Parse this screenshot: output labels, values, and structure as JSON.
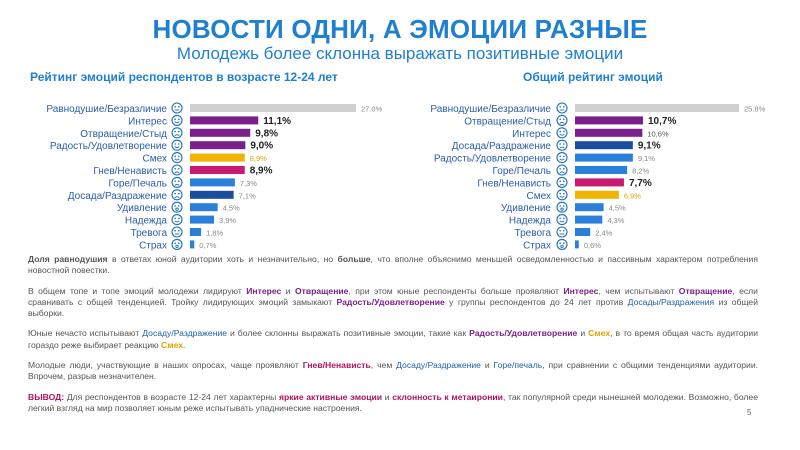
{
  "header": {
    "title": "НОВОСТИ ОДНИ, А ЭМОЦИИ РАЗНЫЕ",
    "subtitle": "Молодежь более склонна выражать позитивные эмоции"
  },
  "colors": {
    "accent": "#1f7fd0",
    "gray": "#d0d0d0",
    "purple": "#7a1f8c",
    "yellow": "#f0b400",
    "pink": "#c81a6e",
    "blue": "#2a7fd8",
    "icon": "#1f6fb8"
  },
  "chart_data": [
    {
      "type": "bar",
      "orientation": "horizontal",
      "title": "Рейтинг эмоций респондентов в возрасте 12-24 лет",
      "categories": [
        "Равнодушие/Безразличие",
        "Интерес",
        "Отвращение/Стыд",
        "Радость/Удовлетворение",
        "Смех",
        "Гнев/Ненависть",
        "Горе/Печаль",
        "Досада/Раздражение",
        "Удивление",
        "Надежда",
        "Тревога",
        "Страх"
      ],
      "values": [
        27.0,
        11.1,
        9.8,
        9.0,
        8.9,
        8.9,
        7.3,
        7.1,
        4.5,
        3.9,
        1.8,
        0.7
      ],
      "labels": [
        "27.0%",
        "11,1%",
        "9,8%",
        "9,0%",
        "8,9%",
        "8,9%",
        "7,3%",
        "7,1%",
        "4,5%",
        "3,9%",
        "1,8%",
        "0,7%"
      ],
      "bold": [
        false,
        true,
        true,
        true,
        false,
        true,
        false,
        false,
        false,
        false,
        false,
        false
      ],
      "colors": [
        "#d0d0d0",
        "#7a1f8c",
        "#7a1f8c",
        "#7a1f8c",
        "#f0b400",
        "#c81a6e",
        "#2a7fd8",
        "#1a4fa0",
        "#2a7fd8",
        "#2a7fd8",
        "#2a7fd8",
        "#2a7fd8"
      ],
      "label_colors": [
        "#888888",
        "#222222",
        "#222222",
        "#222222",
        "#e0a400",
        "#222222",
        "#888888",
        "#888888",
        "#888888",
        "#888888",
        "#888888",
        "#888888"
      ],
      "icons": [
        "neutral-face-icon",
        "interest-face-icon",
        "disgust-face-icon",
        "joy-face-icon",
        "laugh-face-icon",
        "anger-face-icon",
        "sad-face-icon",
        "annoyed-face-icon",
        "surprise-face-icon",
        "hope-face-icon",
        "anxiety-face-icon",
        "fear-face-icon"
      ],
      "xlim": [
        0,
        27
      ],
      "grid": false,
      "legend": "none"
    },
    {
      "type": "bar",
      "orientation": "horizontal",
      "title": "Общий рейтинг эмоций",
      "categories": [
        "Равнодушие/Безразличие",
        "Отвращение/Стыд",
        "Интерес",
        "Досада/Раздражение",
        "Радость/Удовлетворение",
        "Горе/Печаль",
        "Гнев/Ненависть",
        "Смех",
        "Удивление",
        "Надежда",
        "Тревога",
        "Страх"
      ],
      "values": [
        25.8,
        10.7,
        10.6,
        9.1,
        9.1,
        8.2,
        7.7,
        6.9,
        4.5,
        4.3,
        2.4,
        0.6
      ],
      "labels": [
        "25.8%",
        "10,7%",
        "10,6%",
        "9,1%",
        "9,1%",
        "8,2%",
        "7,7%",
        "6,9%",
        "4,5%",
        "4,3%",
        "2,4%",
        "0,6%"
      ],
      "bold": [
        false,
        true,
        false,
        true,
        false,
        false,
        true,
        false,
        false,
        false,
        false,
        false
      ],
      "colors": [
        "#d0d0d0",
        "#7a1f8c",
        "#7a1f8c",
        "#1a4fa0",
        "#2a7fd8",
        "#2a7fd8",
        "#c81a6e",
        "#f0b400",
        "#2a7fd8",
        "#2a7fd8",
        "#2a7fd8",
        "#2a7fd8"
      ],
      "label_colors": [
        "#888888",
        "#222222",
        "#555555",
        "#222222",
        "#888888",
        "#888888",
        "#222222",
        "#e0a400",
        "#888888",
        "#888888",
        "#888888",
        "#888888"
      ],
      "icons": [
        "neutral-face-icon",
        "disgust-face-icon",
        "interest-face-icon",
        "annoyed-face-icon",
        "joy-face-icon",
        "sad-face-icon",
        "anger-face-icon",
        "laugh-face-icon",
        "surprise-face-icon",
        "hope-face-icon",
        "anxiety-face-icon",
        "fear-face-icon"
      ],
      "xlim": [
        0,
        25.8
      ],
      "grid": false,
      "legend": "none"
    }
  ],
  "paragraphs": {
    "p1": {
      "a": "Доля равнодушия",
      "b": " в ответах юной аудитории хоть и незначительно, но ",
      "c": "больше",
      "d": ", что вполне объяснимо меньшей осведомленностью и пассивным характером потребления новостной повестки."
    },
    "p2": {
      "a": "В общем топе и топе эмоций молодежи лидируют ",
      "b": "Интерес",
      "c": " и ",
      "d": "Отвращение",
      "e": ", при этом юные респонденты больше проявляют ",
      "f": "Интерес",
      "g": ", чем испытывают ",
      "h": "Отвращение",
      "i": ", если сравнивать с общей тенденцией. Тройку лидирующих эмоций замыкают ",
      "j": "Радость/Удовлетворение",
      "k": " у группы респондентов до 24 лет против ",
      "l": "Досады/Раздражения",
      "m": " из общей выборки."
    },
    "p3": {
      "a": "Юные нечасто испытывают ",
      "b": "Досаду/Раздражение",
      "c": " и более склонны выражать позитивные эмоции, такие как ",
      "d": "Радость/Удовлетворение",
      "e": " и ",
      "f": "Смех",
      "g": ", в то время общая часть аудитории гораздо реже выбирает реакцию ",
      "h": "Смех",
      "i": "."
    },
    "p4": {
      "a": "Молодые люди, участвующие в наших опросах, чаще проявляют ",
      "b": "Гнев/Ненависть",
      "c": ", чем ",
      "d": "Досаду/Раздражение",
      "e": " и ",
      "f": "Горе/печаль",
      "g": ", при сравнении с общими тенденциями аудитории. Впрочем, разрыв незначителен."
    },
    "p5": {
      "a": "ВЫВОД:",
      "b": " Для респондентов в возрасте 12-24 лет характерны ",
      "c": "яркие активные эмоции",
      "d": " и ",
      "e": "склонность к метаиронии",
      "f": ", так популярной среди нынешней молодежи. Возможно, более легкий взгляд на мир позволяет юным реже испытывать упаднические настроения."
    }
  },
  "page_number": "5"
}
